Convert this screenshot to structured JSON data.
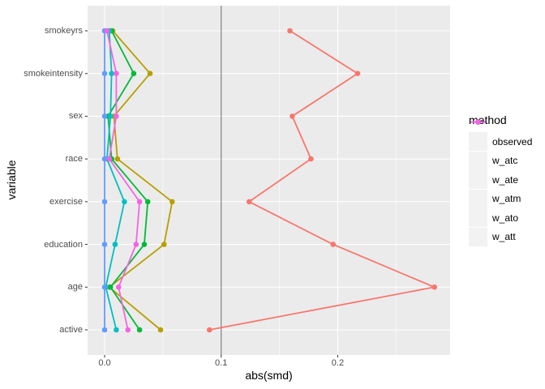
{
  "figure": {
    "panel_background": "#EBEBEB",
    "grid_color": "#FFFFFF",
    "reference_line_color": "#7F7F7F",
    "tick_mark_color": "#333333",
    "axis_text_color": "#4D4D4D",
    "legend_key_background": "#F2F2F2"
  },
  "chart_data": {
    "type": "line",
    "orientation": "horizontal",
    "title": "",
    "xlabel": "abs(smd)",
    "ylabel": "variable",
    "legend_title": "method",
    "legend_position": "right",
    "grid": true,
    "categories": [
      "smokeyrs",
      "smokeintensity",
      "sex",
      "race",
      "exercise",
      "education",
      "age",
      "active"
    ],
    "x_ticks": [
      0.0,
      0.1,
      0.2
    ],
    "x_tick_labels": [
      "0.0",
      "0.1",
      "0.2"
    ],
    "x_minor_ticks": [
      0.05,
      0.15,
      0.25
    ],
    "xlim": [
      -0.0146,
      0.2964
    ],
    "reference_line_x": 0.1,
    "series": [
      {
        "name": "observed",
        "color": "#F8766D",
        "values": [
          0.159,
          0.217,
          0.161,
          0.177,
          0.124,
          0.196,
          0.283,
          0.09
        ]
      },
      {
        "name": "w_atc",
        "color": "#B79F00",
        "values": [
          0.007,
          0.039,
          0.008,
          0.011,
          0.058,
          0.051,
          0.004,
          0.048
        ]
      },
      {
        "name": "w_ate",
        "color": "#00BA38",
        "values": [
          0.006,
          0.025,
          0.003,
          0.006,
          0.037,
          0.034,
          0.005,
          0.03
        ]
      },
      {
        "name": "w_atm",
        "color": "#00BFC4",
        "values": [
          0.004,
          0.006,
          0.005,
          0.002,
          0.017,
          0.009,
          0.001,
          0.01
        ]
      },
      {
        "name": "w_ato",
        "color": "#619CFF",
        "values": [
          0.0,
          0.0,
          0.0,
          0.0,
          0.0,
          0.0,
          0.0,
          0.0
        ]
      },
      {
        "name": "w_att",
        "color": "#F564E3",
        "values": [
          0.002,
          0.01,
          0.01,
          0.004,
          0.03,
          0.027,
          0.012,
          0.02
        ]
      }
    ]
  }
}
